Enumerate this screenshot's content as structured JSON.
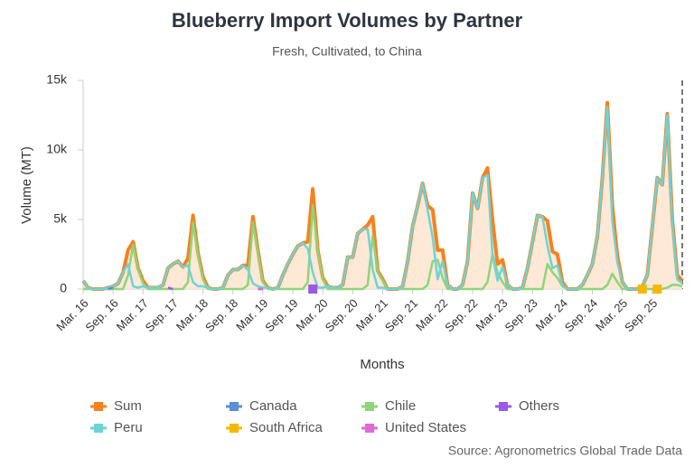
{
  "chart_data": {
    "type": "line",
    "title": "Blueberry Import Volumes by Partner",
    "subtitle": "Fresh, Cultivated, to China",
    "x_label": "Months",
    "y_label": "Volume (MT)",
    "source": "Source: Agronometrics Global Trade Data",
    "categories": [
      "Mar. 16",
      null,
      null,
      null,
      null,
      null,
      "Sep. 16",
      null,
      null,
      null,
      null,
      null,
      "Mar. 17",
      null,
      null,
      null,
      null,
      null,
      "Sep. 17",
      null,
      null,
      null,
      null,
      null,
      "Mar. 18",
      null,
      null,
      null,
      null,
      null,
      "Sep. 18",
      null,
      null,
      null,
      null,
      null,
      "Mar. 19",
      null,
      null,
      null,
      null,
      null,
      "Sep. 19",
      null,
      null,
      null,
      null,
      null,
      "Mar. 20",
      null,
      null,
      null,
      null,
      null,
      "Sep. 20",
      null,
      null,
      null,
      null,
      null,
      "Mar. 21",
      null,
      null,
      null,
      null,
      null,
      "Sep. 21",
      null,
      null,
      null,
      null,
      null,
      "Mar. 22",
      null,
      null,
      null,
      null,
      null,
      "Sep. 22",
      null,
      null,
      null,
      null,
      null,
      "Mar. 23",
      null,
      null,
      null,
      null,
      null,
      "Sep. 23",
      null,
      null,
      null,
      null,
      null,
      "Mar. 24",
      null,
      null,
      null,
      null,
      null,
      "Sep. 24",
      null,
      null,
      null,
      null,
      null,
      "Mar. 25",
      null,
      null,
      null,
      null,
      null,
      "Sep. 25",
      null,
      null,
      null,
      null,
      null,
      null
    ],
    "ylim": [
      0,
      15000
    ],
    "yticks": [
      0,
      {
        "value": 5000,
        "label": "5k"
      },
      {
        "value": 10000,
        "label": "10k"
      },
      {
        "value": 15000,
        "label": "15k"
      }
    ],
    "series": [
      {
        "name": "Sum",
        "color": "#f5821f",
        "area": true,
        "values": [
          600,
          100,
          0,
          0,
          0,
          100,
          200,
          400,
          1200,
          2800,
          3400,
          1500,
          600,
          100,
          100,
          100,
          300,
          1500,
          1800,
          2000,
          1600,
          2200,
          5300,
          2600,
          900,
          100,
          0,
          0,
          100,
          1000,
          1400,
          1400,
          1700,
          1700,
          5200,
          2800,
          600,
          100,
          0,
          100,
          1000,
          1800,
          2500,
          3100,
          3300,
          3400,
          7200,
          2800,
          800,
          200,
          100,
          100,
          300,
          2300,
          2300,
          4000,
          4300,
          4600,
          5200,
          1300,
          700,
          0,
          0,
          0,
          200,
          2000,
          4500,
          6000,
          7600,
          6000,
          5700,
          2800,
          2800,
          300,
          0,
          0,
          300,
          2000,
          6900,
          5800,
          8000,
          8700,
          5000,
          1800,
          2100,
          300,
          0,
          0,
          100,
          1500,
          3400,
          5300,
          5200,
          4900,
          2700,
          2500,
          500,
          0,
          0,
          0,
          300,
          1000,
          1800,
          3800,
          8000,
          13400,
          6000,
          2400,
          500,
          0,
          0,
          0,
          200,
          1000,
          4500,
          8000,
          7500,
          12600,
          5000,
          1000,
          600
        ]
      },
      {
        "name": "Canada",
        "color": "#5b8fd6",
        "values": [
          null,
          null,
          null,
          null,
          null,
          0,
          100,
          null,
          null,
          null,
          null,
          null,
          null,
          null,
          null,
          null,
          null,
          null,
          null,
          null,
          null,
          null,
          null,
          null,
          null,
          null,
          null,
          null,
          null,
          null,
          null,
          null,
          null,
          null,
          null,
          null,
          null,
          null,
          null,
          null,
          null,
          null,
          null,
          null,
          null,
          null,
          null,
          null,
          null,
          null,
          null,
          null,
          null,
          null,
          null,
          null,
          null,
          null,
          null,
          null,
          null,
          null,
          null,
          null,
          null,
          null,
          null,
          null,
          null,
          null,
          null,
          null,
          null,
          null,
          null,
          null,
          null,
          null,
          null,
          null,
          null,
          null,
          null,
          null,
          null,
          null,
          null,
          null,
          null,
          null,
          null,
          null,
          null,
          null,
          null,
          null,
          null,
          null,
          null,
          null,
          null,
          null,
          null,
          null,
          null,
          null,
          null,
          null,
          null,
          null,
          null,
          null,
          null,
          null,
          null,
          null,
          null,
          null,
          null,
          null,
          null
        ]
      },
      {
        "name": "Chile",
        "color": "#8fd47a",
        "values": [
          0,
          0,
          0,
          0,
          0,
          0,
          0,
          0,
          0,
          1000,
          3200,
          1400,
          400,
          0,
          0,
          0,
          0,
          0,
          0,
          0,
          0,
          500,
          4800,
          2400,
          700,
          0,
          0,
          0,
          0,
          0,
          0,
          0,
          0,
          300,
          4800,
          2600,
          500,
          0,
          0,
          0,
          0,
          0,
          0,
          0,
          0,
          500,
          6000,
          2700,
          700,
          0,
          0,
          0,
          0,
          0,
          0,
          0,
          0,
          300,
          3800,
          1200,
          600,
          0,
          0,
          0,
          0,
          0,
          0,
          0,
          0,
          300,
          2000,
          2100,
          800,
          0,
          0,
          0,
          0,
          0,
          0,
          0,
          0,
          500,
          2500,
          1200,
          500,
          0,
          0,
          0,
          0,
          0,
          0,
          0,
          0,
          1800,
          1200,
          800,
          200,
          0,
          0,
          0,
          0,
          0,
          0,
          0,
          0,
          300,
          1100,
          500,
          0,
          0,
          0,
          0,
          0,
          0,
          0,
          0,
          0,
          100,
          300,
          300,
          200
        ]
      },
      {
        "name": "Others",
        "color": "#9b59e8",
        "values": [
          null,
          null,
          null,
          null,
          null,
          null,
          null,
          null,
          null,
          null,
          null,
          null,
          null,
          null,
          null,
          null,
          null,
          100,
          0,
          null,
          null,
          null,
          null,
          null,
          null,
          null,
          null,
          null,
          null,
          null,
          null,
          null,
          null,
          null,
          null,
          0,
          0,
          null,
          null,
          null,
          null,
          null,
          null,
          null,
          null,
          null,
          0,
          null,
          null,
          null,
          null,
          null,
          null,
          null,
          null,
          null,
          null,
          null,
          null,
          null,
          null,
          null,
          null,
          null,
          null,
          null,
          null,
          null,
          null,
          null,
          null,
          null,
          null,
          null,
          null,
          null,
          null,
          null,
          null,
          null,
          null,
          null,
          null,
          null,
          null,
          null,
          null,
          null,
          null,
          null,
          null,
          null,
          null,
          null,
          null,
          null,
          null,
          null,
          null,
          null,
          null,
          null,
          null,
          null,
          null,
          null,
          null,
          null,
          null,
          null,
          null,
          null,
          null,
          null,
          null,
          null,
          null,
          null,
          null,
          null,
          null
        ]
      },
      {
        "name": "Peru",
        "color": "#6ed3d8",
        "values": [
          600,
          100,
          0,
          0,
          0,
          100,
          200,
          400,
          1200,
          1800,
          200,
          100,
          200,
          100,
          100,
          100,
          300,
          1500,
          1800,
          2000,
          1600,
          1700,
          500,
          200,
          200,
          100,
          0,
          0,
          100,
          1000,
          1400,
          1400,
          1700,
          1400,
          400,
          200,
          100,
          100,
          0,
          100,
          1000,
          1800,
          2500,
          3100,
          3300,
          2900,
          1200,
          100,
          100,
          200,
          100,
          100,
          300,
          2300,
          2300,
          4000,
          4300,
          4300,
          1400,
          100,
          100,
          0,
          0,
          0,
          200,
          2000,
          4500,
          6000,
          7600,
          5700,
          3700,
          700,
          2000,
          300,
          0,
          0,
          300,
          2000,
          6900,
          5800,
          8000,
          8200,
          2500,
          600,
          1600,
          300,
          0,
          0,
          100,
          1500,
          3400,
          5300,
          5200,
          3100,
          1500,
          1700,
          300,
          0,
          0,
          0,
          300,
          1000,
          1800,
          3800,
          8000,
          13100,
          4900,
          1900,
          500,
          0,
          0,
          0,
          200,
          1000,
          4500,
          8000,
          7500,
          12500,
          4700,
          700,
          400
        ]
      },
      {
        "name": "South Africa",
        "color": "#f5b800",
        "values": [
          null,
          null,
          null,
          null,
          null,
          null,
          null,
          null,
          null,
          null,
          null,
          null,
          null,
          null,
          null,
          null,
          null,
          null,
          null,
          null,
          null,
          null,
          null,
          null,
          null,
          null,
          null,
          null,
          null,
          null,
          null,
          null,
          null,
          null,
          null,
          null,
          null,
          null,
          null,
          null,
          null,
          null,
          null,
          null,
          null,
          null,
          null,
          null,
          null,
          null,
          null,
          null,
          null,
          null,
          null,
          null,
          null,
          null,
          null,
          null,
          null,
          null,
          null,
          null,
          null,
          null,
          null,
          null,
          null,
          null,
          null,
          null,
          null,
          null,
          null,
          null,
          null,
          null,
          null,
          null,
          null,
          null,
          null,
          null,
          null,
          null,
          null,
          null,
          null,
          null,
          null,
          null,
          null,
          null,
          null,
          null,
          null,
          null,
          null,
          null,
          null,
          null,
          null,
          null,
          null,
          null,
          null,
          null,
          null,
          null,
          null,
          null,
          0,
          null,
          null,
          0,
          null,
          null,
          null,
          null,
          null
        ]
      },
      {
        "name": "United States",
        "color": "#e06ad6",
        "values": [
          null,
          null,
          null,
          null,
          null,
          null,
          null,
          null,
          null,
          null,
          null,
          null,
          null,
          null,
          null,
          null,
          null,
          null,
          null,
          null,
          null,
          null,
          null,
          null,
          null,
          null,
          null,
          null,
          null,
          null,
          null,
          null,
          null,
          null,
          null,
          0,
          0,
          null,
          null,
          null,
          null,
          null,
          null,
          null,
          null,
          null,
          null,
          null,
          null,
          null,
          null,
          null,
          null,
          null,
          null,
          null,
          null,
          null,
          null,
          null,
          null,
          null,
          null,
          null,
          null,
          null,
          null,
          null,
          null,
          null,
          null,
          null,
          null,
          null,
          null,
          null,
          null,
          null,
          null,
          null,
          null,
          null,
          null,
          null,
          null,
          null,
          null,
          null,
          null,
          null,
          null,
          null,
          null,
          null,
          null,
          null,
          null,
          null,
          null,
          null,
          null,
          null,
          null,
          null,
          null,
          null,
          null,
          null,
          null,
          null,
          null,
          null,
          null,
          null,
          null,
          null,
          null,
          null,
          null,
          null,
          null
        ]
      }
    ],
    "draw_order": [
      0,
      2,
      4,
      1,
      3,
      5,
      6
    ],
    "area_color": "#fde3cc"
  }
}
